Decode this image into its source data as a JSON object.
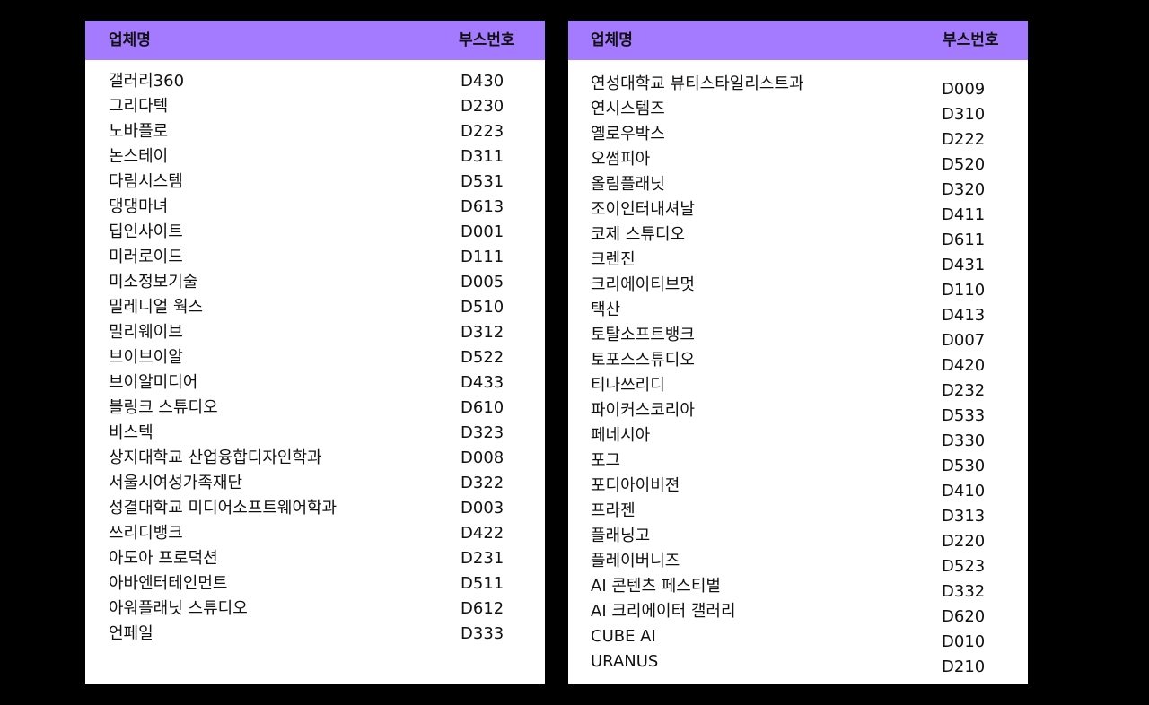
{
  "header": {
    "name_label": "업체명",
    "booth_label": "부스번호",
    "color": "#a47bff"
  },
  "left": [
    {
      "name": "갤러리360",
      "booth": "D430"
    },
    {
      "name": "그리다텍",
      "booth": "D230"
    },
    {
      "name": "노바플로",
      "booth": "D223"
    },
    {
      "name": "논스테이",
      "booth": "D311"
    },
    {
      "name": "다림시스템",
      "booth": "D531"
    },
    {
      "name": "댕댕마녀",
      "booth": "D613"
    },
    {
      "name": "딥인사이트",
      "booth": "D001"
    },
    {
      "name": "미러로이드",
      "booth": "D111"
    },
    {
      "name": "미소정보기술",
      "booth": "D005"
    },
    {
      "name": "밀레니얼 웍스",
      "booth": "D510"
    },
    {
      "name": "밀리웨이브",
      "booth": "D312"
    },
    {
      "name": "브이브이알",
      "booth": "D522"
    },
    {
      "name": "브이알미디어",
      "booth": "D433"
    },
    {
      "name": "블링크 스튜디오",
      "booth": "D610"
    },
    {
      "name": "비스텍",
      "booth": "D323"
    },
    {
      "name": "상지대학교 산업융합디자인학과",
      "booth": "D008"
    },
    {
      "name": "서울시여성가족재단",
      "booth": "D322"
    },
    {
      "name": "성결대학교 미디어소프트웨어학과",
      "booth": "D003"
    },
    {
      "name": "쓰리디뱅크",
      "booth": "D422"
    },
    {
      "name": "아도아 프로덕션",
      "booth": "D231"
    },
    {
      "name": "아바엔터테인먼트",
      "booth": "D511"
    },
    {
      "name": "아워플래닛 스튜디오",
      "booth": "D612"
    },
    {
      "name": "언페일",
      "booth": "D333"
    }
  ],
  "right": [
    {
      "name": "연성대학교 뷰티스타일리스트과",
      "booth": "D009"
    },
    {
      "name": "연시스템즈",
      "booth": "D310"
    },
    {
      "name": "옐로우박스",
      "booth": "D222"
    },
    {
      "name": "오썸피아",
      "booth": "D520"
    },
    {
      "name": "올림플래닛",
      "booth": "D320"
    },
    {
      "name": "조이인터내셔날",
      "booth": "D411"
    },
    {
      "name": "코제 스튜디오",
      "booth": "D611"
    },
    {
      "name": "크렌진",
      "booth": "D431"
    },
    {
      "name": "크리에이티브멋",
      "booth": "D110"
    },
    {
      "name": "택산",
      "booth": "D413"
    },
    {
      "name": "토탈소프트뱅크",
      "booth": "D007"
    },
    {
      "name": "토포스스튜디오",
      "booth": "D420"
    },
    {
      "name": "티나쓰리디",
      "booth": "D232"
    },
    {
      "name": "파이커스코리아",
      "booth": "D533"
    },
    {
      "name": "페네시아",
      "booth": "D330"
    },
    {
      "name": "포그",
      "booth": "D530"
    },
    {
      "name": "포디아이비젼",
      "booth": "D410"
    },
    {
      "name": "프라젠",
      "booth": "D313"
    },
    {
      "name": "플래닝고",
      "booth": "D220"
    },
    {
      "name": "플레이버니즈",
      "booth": "D523"
    },
    {
      "name": "AI 콘텐츠 페스티벌",
      "booth": "D332"
    },
    {
      "name": "AI 크리에이터 갤러리",
      "booth": "D620"
    },
    {
      "name": "CUBE AI",
      "booth": "D010"
    },
    {
      "name": "URANUS",
      "booth": "D210"
    }
  ]
}
